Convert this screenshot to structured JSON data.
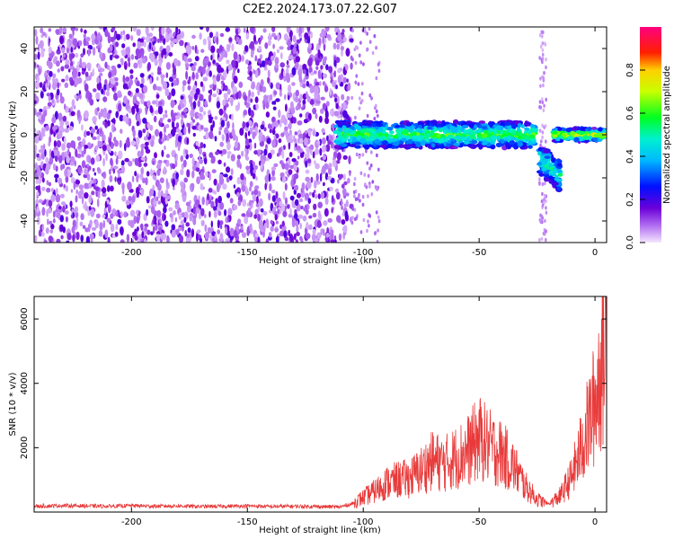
{
  "chart_data": [
    {
      "type": "heatmap",
      "title": "C2E2.2024.173.07.22.G07",
      "xlabel": "Height of straight line (km)",
      "ylabel": "Frequency (Hz)",
      "xlim": [
        -242,
        5
      ],
      "ylim": [
        -50,
        50
      ],
      "xticks": [
        "-200",
        "-150",
        "-100",
        "-50",
        "0"
      ],
      "yticks": [
        "-40",
        "-20",
        "0",
        "20",
        "40"
      ],
      "colorbar": {
        "label": "Normalized spectral amplitude",
        "range": [
          0,
          1
        ],
        "ticks": [
          "0.0",
          "0.2",
          "0.4",
          "0.6",
          "0.8"
        ]
      },
      "features": [
        {
          "x_start": -242,
          "x_end": -105,
          "freq_min": -50,
          "freq_max": 50,
          "amplitude": "low, broadband noise"
        },
        {
          "x_start": -112,
          "x_end": -25,
          "freq_center": 0,
          "freq_halfwidth": 6,
          "amplitude": "high"
        },
        {
          "x_start": -24,
          "x_end": -15,
          "freq_center": -15,
          "freq_halfwidth": 7,
          "amplitude": "medium"
        },
        {
          "x_start": -18,
          "x_end": 5,
          "freq_center": 0,
          "freq_halfwidth": 3,
          "amplitude": "very high"
        }
      ]
    },
    {
      "type": "line",
      "xlabel": "Height of straight line (km)",
      "ylabel": "SNR (10 * v/v)",
      "xlim": [
        -242,
        5
      ],
      "ylim": [
        0,
        6700
      ],
      "xticks": [
        "-200",
        "-150",
        "-100",
        "-50",
        "0"
      ],
      "yticks": [
        "2000",
        "4000",
        "6000"
      ],
      "color": "#e83a3a",
      "x": [
        -242,
        -230,
        -220,
        -210,
        -200,
        -190,
        -180,
        -170,
        -160,
        -150,
        -140,
        -130,
        -120,
        -110,
        -105,
        -100,
        -95,
        -90,
        -85,
        -80,
        -75,
        -70,
        -65,
        -60,
        -55,
        -50,
        -45,
        -40,
        -35,
        -30,
        -25,
        -20,
        -15,
        -10,
        -5,
        0,
        5
      ],
      "y": [
        180,
        200,
        190,
        180,
        200,
        180,
        190,
        170,
        180,
        190,
        170,
        180,
        170,
        160,
        250,
        450,
        650,
        900,
        1000,
        1050,
        1300,
        1600,
        1500,
        1700,
        1900,
        2300,
        2000,
        1800,
        1400,
        800,
        400,
        250,
        500,
        1100,
        2200,
        3400,
        5600
      ]
    }
  ]
}
